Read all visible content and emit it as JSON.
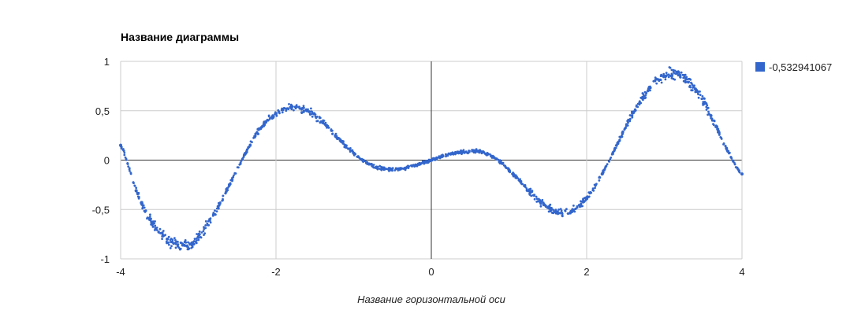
{
  "chart_data": {
    "type": "scatter",
    "title": "Название диаграммы",
    "xlabel": "Название горизонтальной оси",
    "ylabel": "",
    "xlim": [
      -4,
      4
    ],
    "ylim": [
      -1,
      1
    ],
    "x_ticks": [
      -4,
      -2,
      0,
      2,
      4
    ],
    "x_tick_labels": [
      "-4",
      "-2",
      "0",
      "2",
      "4"
    ],
    "y_ticks": [
      1,
      0.5,
      0,
      -0.5,
      -1
    ],
    "y_tick_labels": [
      "1",
      "0,5",
      "0",
      "-0,5",
      "-1"
    ],
    "grid": true,
    "legend_position": "right",
    "series": [
      {
        "name": "-0,532941067",
        "color": "#3366cc",
        "x": [
          -4.0,
          -3.8,
          -3.6,
          -3.4,
          -3.2,
          -3.0,
          -2.8,
          -2.6,
          -2.4,
          -2.2,
          -2.0,
          -1.8,
          -1.6,
          -1.4,
          -1.2,
          -1.0,
          -0.8,
          -0.6,
          -0.4,
          -0.2,
          0.0,
          0.2,
          0.4,
          0.6,
          0.8,
          1.0,
          1.2,
          1.4,
          1.6,
          1.8,
          2.0,
          2.2,
          2.4,
          2.6,
          2.8,
          3.0,
          3.2,
          3.4,
          3.6,
          3.8,
          4.0
        ],
        "y": [
          0.15,
          -0.31,
          -0.63,
          -0.8,
          -0.86,
          -0.78,
          -0.55,
          -0.25,
          0.06,
          0.32,
          0.47,
          0.53,
          0.5,
          0.38,
          0.22,
          0.07,
          -0.04,
          -0.09,
          -0.09,
          -0.05,
          0.0,
          0.05,
          0.08,
          0.09,
          0.03,
          -0.1,
          -0.26,
          -0.42,
          -0.52,
          -0.52,
          -0.38,
          -0.14,
          0.17,
          0.48,
          0.72,
          0.85,
          0.86,
          0.72,
          0.45,
          0.12,
          -0.14
        ]
      }
    ]
  }
}
